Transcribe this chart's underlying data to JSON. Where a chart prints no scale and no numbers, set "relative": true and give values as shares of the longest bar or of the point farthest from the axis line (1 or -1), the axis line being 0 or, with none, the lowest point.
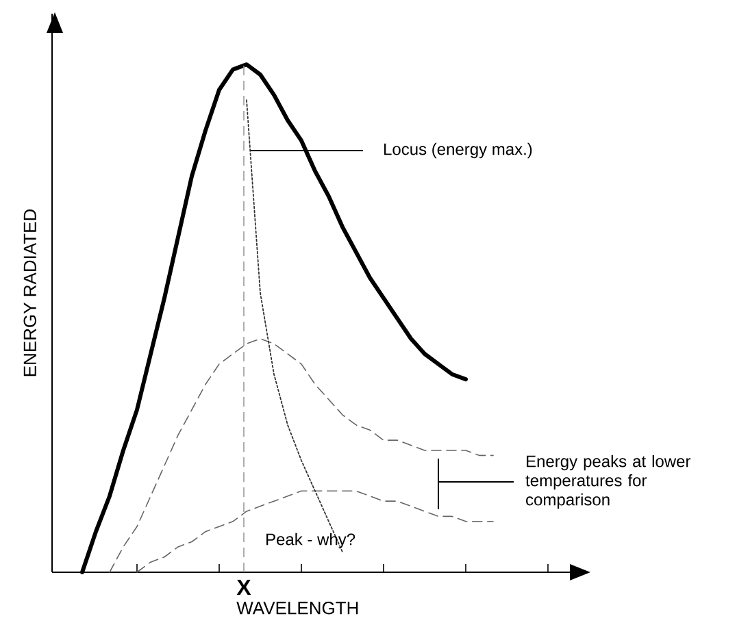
{
  "chart_data": {
    "type": "line",
    "relative": true,
    "xlabel": "WAVELENGTH",
    "ylabel": "ENERGY RADIATED",
    "categories": [
      null,
      null,
      null,
      null,
      null,
      null,
      null,
      null,
      null,
      null,
      null,
      null,
      null,
      null,
      null,
      null,
      null,
      null,
      null,
      null,
      null,
      null,
      null,
      null,
      null,
      null,
      null,
      null,
      null,
      null,
      null,
      null,
      null
    ],
    "series": [
      {
        "color": "#000000",
        "line_style": "solid",
        "values": [
          null,
          null,
          0,
          0.08,
          0.15,
          0.24,
          0.32,
          0.43,
          0.54,
          0.66,
          0.78,
          0.87,
          0.95,
          0.99,
          1.0,
          0.98,
          0.94,
          0.89,
          0.85,
          0.79,
          0.74,
          0.68,
          0.63,
          0.58,
          0.54,
          0.5,
          0.46,
          0.43,
          0.41,
          0.39,
          0.38,
          null,
          null
        ]
      },
      {
        "color": "#666666",
        "line_style": "dashed",
        "values": [
          null,
          null,
          null,
          null,
          0,
          0.05,
          0.09,
          0.15,
          0.21,
          0.27,
          0.32,
          0.37,
          0.41,
          0.43,
          0.45,
          0.46,
          0.45,
          0.43,
          0.41,
          0.37,
          0.34,
          0.31,
          0.29,
          0.28,
          0.26,
          0.26,
          0.25,
          0.24,
          0.24,
          0.24,
          0.24,
          0.23,
          0.23
        ]
      },
      {
        "color": "#666666",
        "line_style": "dashed",
        "values": [
          null,
          null,
          null,
          null,
          null,
          null,
          0,
          0.02,
          0.03,
          0.05,
          0.06,
          0.08,
          0.09,
          0.1,
          0.12,
          0.13,
          0.14,
          0.15,
          0.16,
          0.16,
          0.16,
          0.16,
          0.16,
          0.15,
          0.14,
          0.14,
          0.13,
          0.12,
          0.11,
          0.11,
          0.1,
          0.1,
          0.1
        ]
      },
      {
        "color": "#333333",
        "line_style": "dotted",
        "values": [
          null,
          null,
          null,
          null,
          null,
          null,
          null,
          null,
          null,
          null,
          null,
          null,
          null,
          null,
          0.93,
          0.55,
          0.39,
          0.29,
          0.22,
          0.16,
          0.1,
          0.04,
          null,
          null,
          null,
          null,
          null,
          null,
          null,
          null,
          null,
          null,
          null
        ]
      }
    ],
    "annotations": [
      "Locus (energy max.)",
      "Energy peaks at lower temperatures for comparison",
      "Peak - why?",
      "X"
    ]
  }
}
